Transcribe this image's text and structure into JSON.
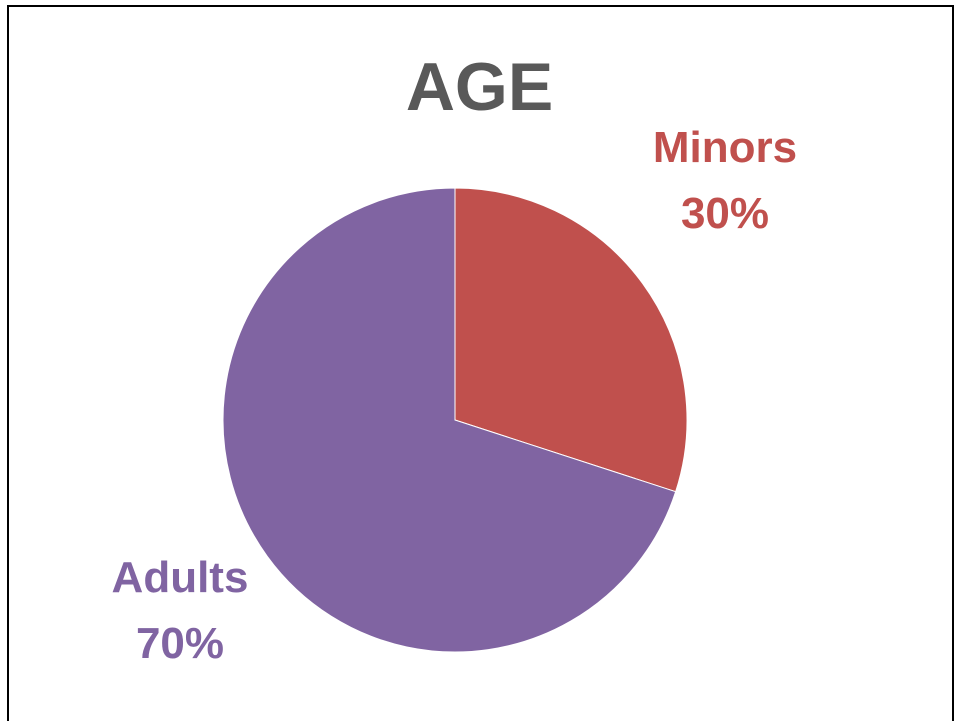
{
  "chart_data": {
    "type": "pie",
    "title": "AGE",
    "categories": [
      "Minors",
      "Adults"
    ],
    "values": [
      30,
      70
    ],
    "value_labels": [
      "30%",
      "70%"
    ],
    "colors": [
      "#c0504d",
      "#8064a2"
    ]
  }
}
